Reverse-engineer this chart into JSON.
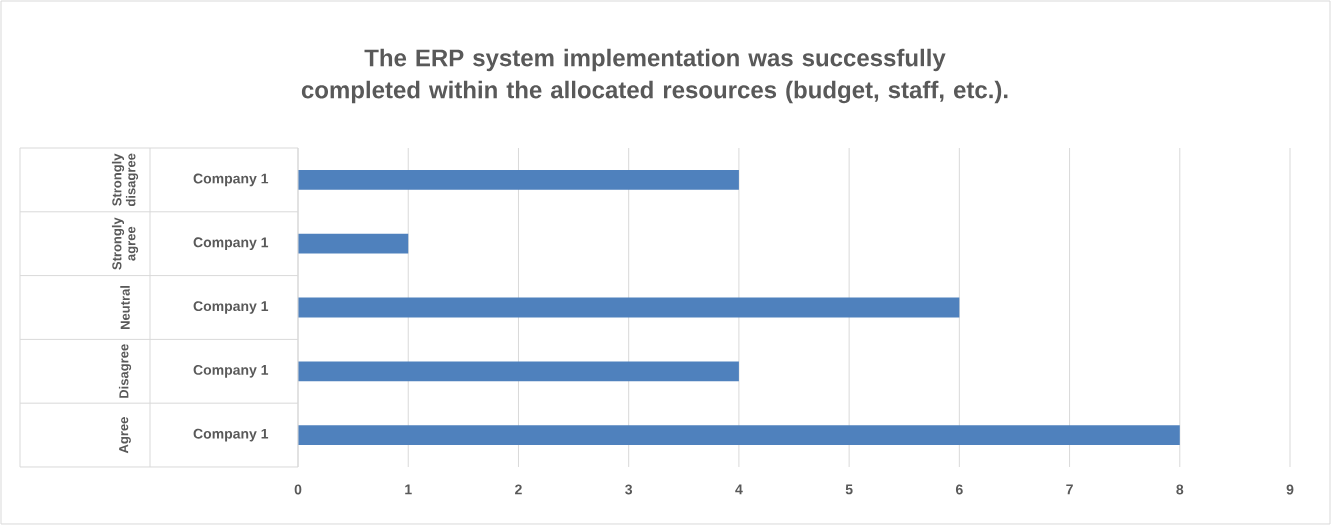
{
  "chart_data": {
    "type": "bar",
    "orientation": "horizontal",
    "title": "The ERP system implementation was successfully completed within the allocated resources (budget, staff, etc.).",
    "categories": [
      "Company 1",
      "Company 1",
      "Company 1",
      "Company 1",
      "Company 1"
    ],
    "annotations": [
      "Strongly disagree",
      "Strongly agree",
      "Neutral",
      "Disagree",
      "Agree"
    ],
    "values": [
      4,
      1,
      6,
      4,
      8
    ],
    "color": "#4f81bd",
    "xlim": [
      0,
      9
    ],
    "xticks": [
      0,
      1,
      2,
      3,
      4,
      5,
      6,
      7,
      8,
      9
    ],
    "grid": "x"
  }
}
